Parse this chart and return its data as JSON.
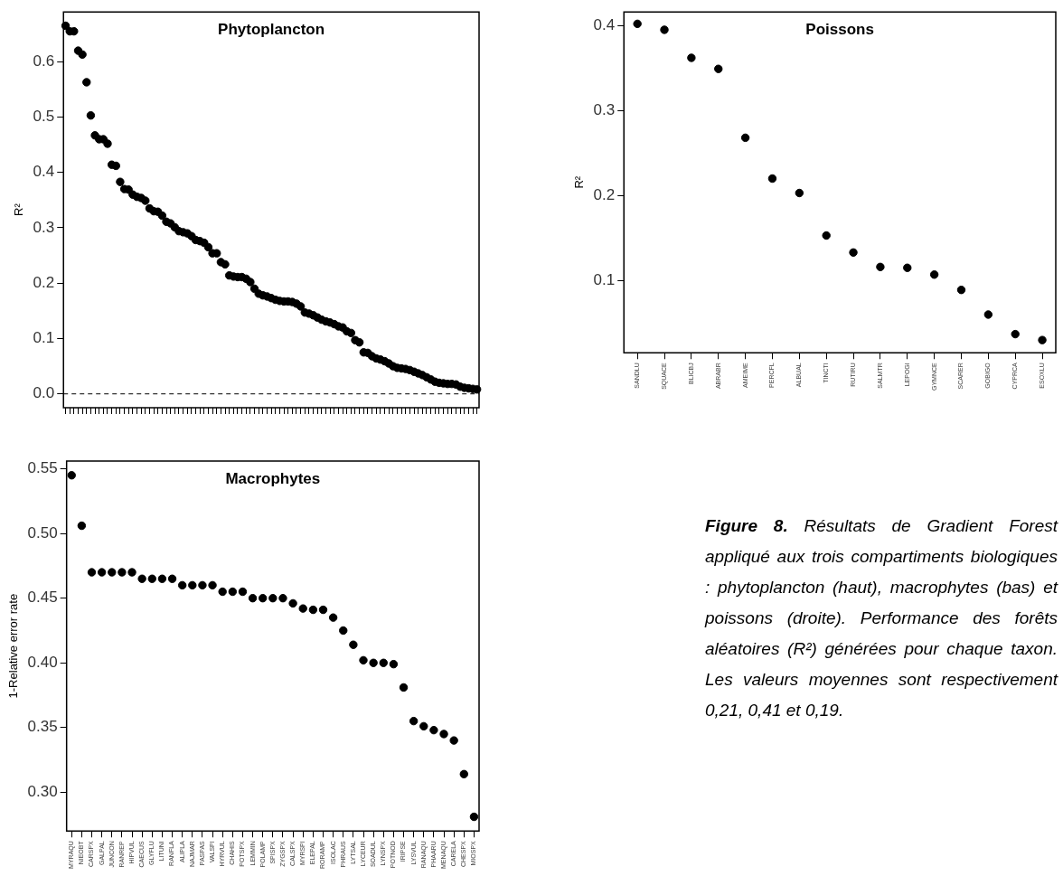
{
  "chart_data": [
    {
      "type": "scatter",
      "title": "Phytoplancton",
      "ylabel": "R²",
      "color": "#000000",
      "marker": "circle",
      "grid": false,
      "legend": false,
      "categories": [
        null,
        null,
        null,
        null,
        null,
        null,
        null,
        null,
        null,
        null,
        null,
        null,
        null,
        null,
        null,
        null,
        null,
        null,
        null,
        null,
        null,
        null,
        null,
        null,
        null,
        null,
        null,
        null,
        null,
        null,
        null,
        null,
        null,
        null,
        null,
        null,
        null,
        null,
        null,
        null,
        null,
        null,
        null,
        null,
        null,
        null,
        null,
        null,
        null,
        null,
        null,
        null,
        null,
        null,
        null,
        null,
        null,
        null,
        null,
        null,
        null,
        null,
        null,
        null,
        null,
        null,
        null,
        null,
        null,
        null,
        null,
        null,
        null,
        null,
        null,
        null,
        null,
        null,
        null,
        null,
        null,
        null,
        null,
        null,
        null,
        null,
        null,
        null,
        null,
        null,
        null,
        null,
        null,
        null,
        null,
        null,
        null,
        null,
        null
      ],
      "values": [
        0.665,
        0.655,
        0.655,
        0.62,
        0.613,
        0.563,
        0.503,
        0.467,
        0.46,
        0.46,
        0.452,
        0.414,
        0.412,
        0.383,
        0.37,
        0.369,
        0.36,
        0.356,
        0.354,
        0.349,
        0.335,
        0.33,
        0.329,
        0.322,
        0.311,
        0.308,
        0.301,
        0.294,
        0.292,
        0.29,
        0.285,
        0.278,
        0.276,
        0.273,
        0.265,
        0.254,
        0.254,
        0.238,
        0.234,
        0.214,
        0.212,
        0.211,
        0.211,
        0.208,
        0.202,
        0.19,
        0.181,
        0.178,
        0.176,
        0.173,
        0.17,
        0.168,
        0.167,
        0.167,
        0.166,
        0.163,
        0.158,
        0.147,
        0.145,
        0.142,
        0.138,
        0.134,
        0.131,
        0.129,
        0.126,
        0.122,
        0.12,
        0.113,
        0.11,
        0.097,
        0.093,
        0.075,
        0.074,
        0.068,
        0.064,
        0.062,
        0.059,
        0.055,
        0.05,
        0.047,
        0.046,
        0.045,
        0.043,
        0.04,
        0.037,
        0.034,
        0.03,
        0.026,
        0.022,
        0.02,
        0.019,
        0.018,
        0.018,
        0.017,
        0.013,
        0.011,
        0.01,
        0.009,
        0.008
      ],
      "ylim": [
        -0.025,
        0.69
      ],
      "yticks": [
        {
          "value": 0,
          "label": "0.0"
        },
        0.1,
        0.2,
        0.3,
        0.4,
        0.5,
        0.6
      ],
      "ref_lines": [
        {
          "axis": "y",
          "value": 0,
          "line_style": "dashed",
          "color": "#000000"
        }
      ]
    },
    {
      "type": "scatter",
      "title": "Poissons",
      "ylabel": "R²",
      "color": "#000000",
      "marker": "circle",
      "grid": false,
      "legend": false,
      "categories": [
        "SANDLU",
        "SQUACE",
        "BLICBJ",
        "ABRABR",
        "AMEIME",
        "PERCFL",
        "ALBUAL",
        "TINCTI",
        "RUTIRU",
        "SALMTR",
        "LEPOGI",
        "GYMNCE",
        "SCARER",
        "GOBIGO",
        "CYPRCA",
        "ESOXLU"
      ],
      "values": [
        0.402,
        0.395,
        0.362,
        0.349,
        0.268,
        0.22,
        0.203,
        0.153,
        0.133,
        0.116,
        0.115,
        0.107,
        0.089,
        0.06,
        0.037,
        0.03
      ],
      "ylim": [
        0.015,
        0.416
      ],
      "yticks": [
        0.1,
        0.2,
        0.3,
        0.4
      ]
    },
    {
      "type": "scatter",
      "title": "Macrophytes",
      "ylabel": "1-Relative error rate",
      "color": "#000000",
      "marker": "circle",
      "grid": false,
      "legend": false,
      "categories": [
        "MYRAQU",
        "NIEOBT",
        "CARSPX",
        "GALPAL",
        "JUNCON",
        "RANREP",
        "HIPVUL",
        "CAECUS",
        "GLYFLU",
        "LITUNI",
        "RANFLA",
        "ALIPLA",
        "NAJMAR",
        "PASPAS",
        "VALSPI",
        "HYRVUL",
        "CHAHIS",
        "POTSPX",
        "LEMMIN",
        "POLAMP",
        "SPISPX",
        "ZYGSPX",
        "CALSPX",
        "MYRSPI",
        "ELEPAL",
        "RORAMP",
        "ISOLAC",
        "PHRAUS",
        "LYTSAL",
        "LYCEUR",
        "SOADUL",
        "LYNSPX",
        "POTNOD",
        "IRIPSE",
        "LYSVUL",
        "RANAQU",
        "PHAARU",
        "MENAQU",
        "CARELA",
        "CHESPX",
        "MIOSPX"
      ],
      "values": [
        0.545,
        0.506,
        0.47,
        0.47,
        0.47,
        0.47,
        0.47,
        0.465,
        0.465,
        0.465,
        0.465,
        0.46,
        0.46,
        0.46,
        0.46,
        0.455,
        0.455,
        0.455,
        0.45,
        0.45,
        0.45,
        0.45,
        0.446,
        0.442,
        0.441,
        0.441,
        0.435,
        0.425,
        0.414,
        0.402,
        0.4,
        0.4,
        0.399,
        0.381,
        0.355,
        0.351,
        0.348,
        0.345,
        0.34,
        0.314,
        0.281
      ],
      "ylim": [
        0.27,
        0.556
      ],
      "yticks": [
        {
          "value": 0.3,
          "label": "0.30"
        },
        0.35,
        {
          "value": 0.4,
          "label": "0.40"
        },
        0.45,
        {
          "value": 0.5,
          "label": "0.50"
        },
        0.55
      ]
    },
    {
      "type": "other",
      "annotations": [
        "Figure 8.",
        "Résultats de Gradient Forest appliqué aux trois compartiments biologiques : phytoplancton (haut), macrophytes (bas) et poissons (droite). Performance des forêts aléatoires (R²) générées pour chaque taxon. Les valeurs moyennes sont respectivement 0,21, 0,41 et 0,19."
      ]
    }
  ]
}
